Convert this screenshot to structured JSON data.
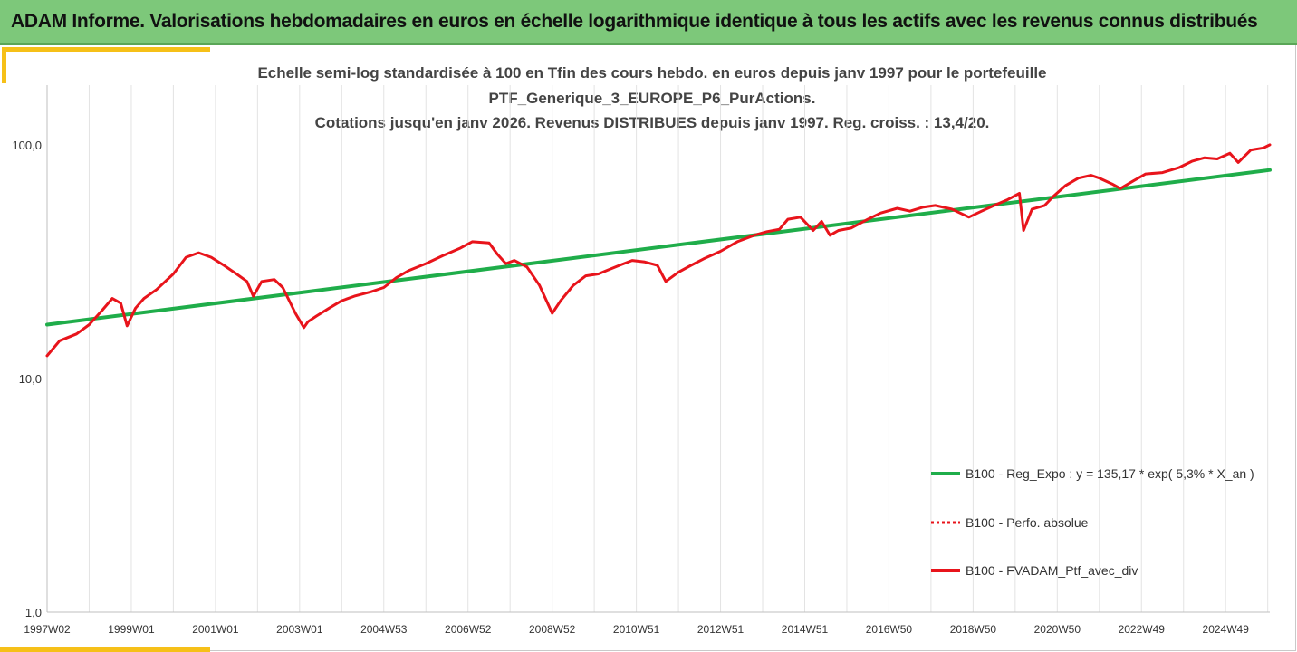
{
  "header": {
    "title": "ADAM Informe. Valorisations hebdomadaires en euros en échelle logarithmique identique à tous les actifs avec les revenus connus distribués"
  },
  "chart_data": {
    "type": "line",
    "title_lines": [
      "Echelle semi-log standardisée à 100 en Tfin des cours hebdo.  en euros depuis janv 1997 pour le portefeuille",
      "PTF_Generique_3_EUROPE_P6_PurActions.",
      "Cotations  jusqu'en janv 2026. Revenus DISTRIBUES depuis janv 1997. Reg. croiss. : 13,4/20."
    ],
    "y_scale": "log",
    "ylim": [
      1,
      180
    ],
    "y_ticks": [
      1,
      10,
      100
    ],
    "y_tick_labels": [
      "1,0",
      "10,0",
      "100,0"
    ],
    "xlim": [
      1997.0,
      2026.05
    ],
    "x_tick_labels": [
      "1997W02",
      "1999W01",
      "2001W01",
      "2003W01",
      "2004W53",
      "2006W52",
      "2008W52",
      "2010W51",
      "2012W51",
      "2014W51",
      "2016W50",
      "2018W50",
      "2020W50",
      "2022W49",
      "2024W49"
    ],
    "x_tick_values": [
      1997.0,
      1999.0,
      2001.0,
      2003.0,
      2005.0,
      2007.0,
      2009.0,
      2011.0,
      2013.0,
      2015.0,
      2017.0,
      2019.0,
      2021.0,
      2023.0,
      2025.0
    ],
    "grid": "vertical",
    "legend_position": "bottom-right",
    "series": [
      {
        "name": "B100 - Reg_Expo : y = 135,17 * exp( 5,3% *  X_an )",
        "color": "#1fad4a",
        "style": "solid",
        "x": [
          1997.0,
          2026.05
        ],
        "y": [
          17.0,
          78.0
        ]
      },
      {
        "name": "B100 - Perfo. absolue",
        "color": "#e8141b",
        "style": "dotted",
        "x": [],
        "y": []
      },
      {
        "name": "B100 - FVADAM_Ptf_avec_div",
        "color": "#e8141b",
        "style": "solid",
        "x": [
          1997.0,
          1997.3,
          1997.7,
          1998.0,
          1998.3,
          1998.55,
          1998.75,
          1998.9,
          1999.1,
          1999.3,
          1999.6,
          2000.0,
          2000.3,
          2000.6,
          2000.9,
          2001.2,
          2001.5,
          2001.75,
          2001.9,
          2002.1,
          2002.4,
          2002.6,
          2002.9,
          2003.1,
          2003.2,
          2003.4,
          2003.7,
          2004.0,
          2004.3,
          2004.7,
          2005.0,
          2005.3,
          2005.6,
          2006.0,
          2006.4,
          2006.8,
          2007.1,
          2007.5,
          2007.7,
          2007.9,
          2008.1,
          2008.4,
          2008.7,
          2009.0,
          2009.2,
          2009.5,
          2009.8,
          2010.1,
          2010.3,
          2010.6,
          2010.9,
          2011.2,
          2011.5,
          2011.7,
          2012.0,
          2012.3,
          2012.6,
          2013.0,
          2013.4,
          2013.8,
          2014.1,
          2014.4,
          2014.6,
          2014.9,
          2015.2,
          2015.4,
          2015.6,
          2015.8,
          2016.1,
          2016.5,
          2016.8,
          2017.2,
          2017.5,
          2017.8,
          2018.1,
          2018.5,
          2018.9,
          2019.2,
          2019.5,
          2019.8,
          2020.1,
          2020.2,
          2020.4,
          2020.7,
          2020.9,
          2021.2,
          2021.5,
          2021.8,
          2022.0,
          2022.3,
          2022.5,
          2022.8,
          2023.1,
          2023.5,
          2023.9,
          2024.2,
          2024.5,
          2024.8,
          2025.1,
          2025.3,
          2025.6,
          2025.9,
          2026.05
        ],
        "y": [
          12.5,
          14.5,
          15.5,
          17.0,
          19.5,
          22.0,
          21.0,
          16.8,
          20.0,
          22.0,
          24.0,
          28.0,
          33.0,
          34.5,
          33.0,
          30.5,
          28.0,
          26.0,
          22.5,
          26.0,
          26.5,
          24.5,
          19.0,
          16.5,
          17.5,
          18.5,
          20.0,
          21.5,
          22.5,
          23.5,
          24.5,
          27.0,
          29.0,
          31.0,
          33.5,
          36.0,
          38.5,
          38.0,
          34.0,
          31.0,
          32.0,
          30.0,
          25.0,
          19.0,
          21.5,
          25.0,
          27.5,
          28.0,
          29.0,
          30.5,
          32.0,
          31.5,
          30.5,
          26.0,
          28.5,
          30.5,
          32.5,
          35.0,
          38.5,
          41.0,
          42.5,
          43.5,
          48.0,
          49.0,
          43.0,
          47.0,
          41.0,
          43.0,
          44.0,
          48.0,
          51.0,
          53.5,
          52.0,
          54.0,
          55.0,
          53.0,
          49.0,
          52.0,
          55.0,
          58.0,
          62.0,
          43.0,
          53.0,
          55.0,
          60.0,
          67.0,
          72.0,
          74.0,
          72.0,
          68.0,
          65.0,
          70.0,
          75.0,
          76.0,
          80.0,
          85.0,
          88.0,
          87.0,
          92.0,
          84.0,
          95.0,
          97.0,
          100.0
        ]
      }
    ]
  }
}
